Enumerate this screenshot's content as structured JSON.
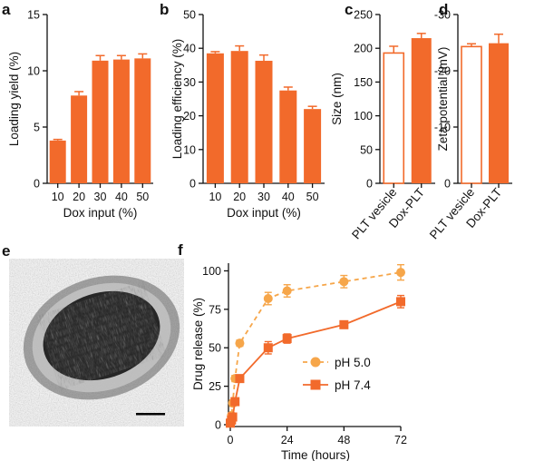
{
  "colors": {
    "orange": "#f26a2b",
    "light_orange": "#f6a64a",
    "axis": "#111111"
  },
  "chart_data": [
    {
      "panel": "a",
      "type": "bar",
      "categories": [
        "10",
        "20",
        "30",
        "40",
        "50"
      ],
      "values": [
        3.8,
        7.8,
        10.9,
        11.0,
        11.1
      ],
      "errors": [
        0.1,
        0.35,
        0.45,
        0.35,
        0.4
      ],
      "xlabel": "Dox input (%)",
      "ylabel": "Loading yield (%)",
      "ylim": [
        0,
        15
      ],
      "yticks": [
        "0",
        "5",
        "10",
        "15"
      ]
    },
    {
      "panel": "b",
      "type": "bar",
      "categories": [
        "10",
        "20",
        "30",
        "40",
        "50"
      ],
      "values": [
        38.5,
        39.2,
        36.3,
        27.5,
        22.0
      ],
      "errors": [
        0.5,
        1.5,
        1.7,
        1.0,
        0.8
      ],
      "xlabel": "Dox input (%)",
      "ylabel": "Loading efficiency (%)",
      "ylim": [
        0,
        50
      ],
      "yticks": [
        "0",
        "10",
        "20",
        "30",
        "40",
        "50"
      ]
    },
    {
      "panel": "c",
      "type": "bar",
      "categories": [
        "PLT vesicle",
        "Dox-PLT"
      ],
      "values": [
        193,
        215
      ],
      "errors": [
        10,
        7
      ],
      "fills": [
        "open",
        "filled"
      ],
      "ylabel": "Size (nm)",
      "ylim": [
        0,
        250
      ],
      "yticks": [
        "0",
        "50",
        "100",
        "150",
        "200",
        "250"
      ]
    },
    {
      "panel": "d",
      "type": "bar",
      "categories": [
        "PLT vesicle",
        "Dox-PLT"
      ],
      "values": [
        -24.3,
        -24.9
      ],
      "errors": [
        0.5,
        1.6
      ],
      "fills": [
        "open",
        "filled"
      ],
      "ylabel": "Zeta potential (mV)",
      "ylim": [
        0,
        -30
      ],
      "yticks": [
        "0",
        "-10",
        "-20",
        "-30"
      ]
    },
    {
      "panel": "f",
      "type": "line",
      "xlabel": "Time (hours)",
      "ylabel": "Drug release (%)",
      "xlim": [
        0,
        72
      ],
      "ylim": [
        0,
        105
      ],
      "xticks": [
        "0",
        "24",
        "48",
        "72"
      ],
      "yticks": [
        "0",
        "25",
        "50",
        "75",
        "100"
      ],
      "legend_position": "center-right",
      "series": [
        {
          "name": "pH 5.0",
          "marker": "circle",
          "linestyle": "dashed",
          "x": [
            0,
            0.5,
            1,
            2,
            4,
            16,
            24,
            48,
            72
          ],
          "y": [
            2,
            6,
            14,
            30,
            53,
            82,
            87,
            93,
            99
          ],
          "err": [
            1,
            1,
            2,
            2,
            2,
            4,
            4,
            4,
            5
          ]
        },
        {
          "name": "pH 7.4",
          "marker": "square",
          "linestyle": "solid",
          "x": [
            0,
            0.5,
            1,
            2,
            4,
            16,
            24,
            48,
            72
          ],
          "y": [
            1,
            3,
            5,
            15,
            30,
            50,
            56,
            65,
            80
          ],
          "err": [
            1,
            1,
            1,
            2,
            2,
            4,
            3,
            2,
            4
          ]
        }
      ]
    }
  ],
  "image_panel": {
    "label": "e"
  }
}
